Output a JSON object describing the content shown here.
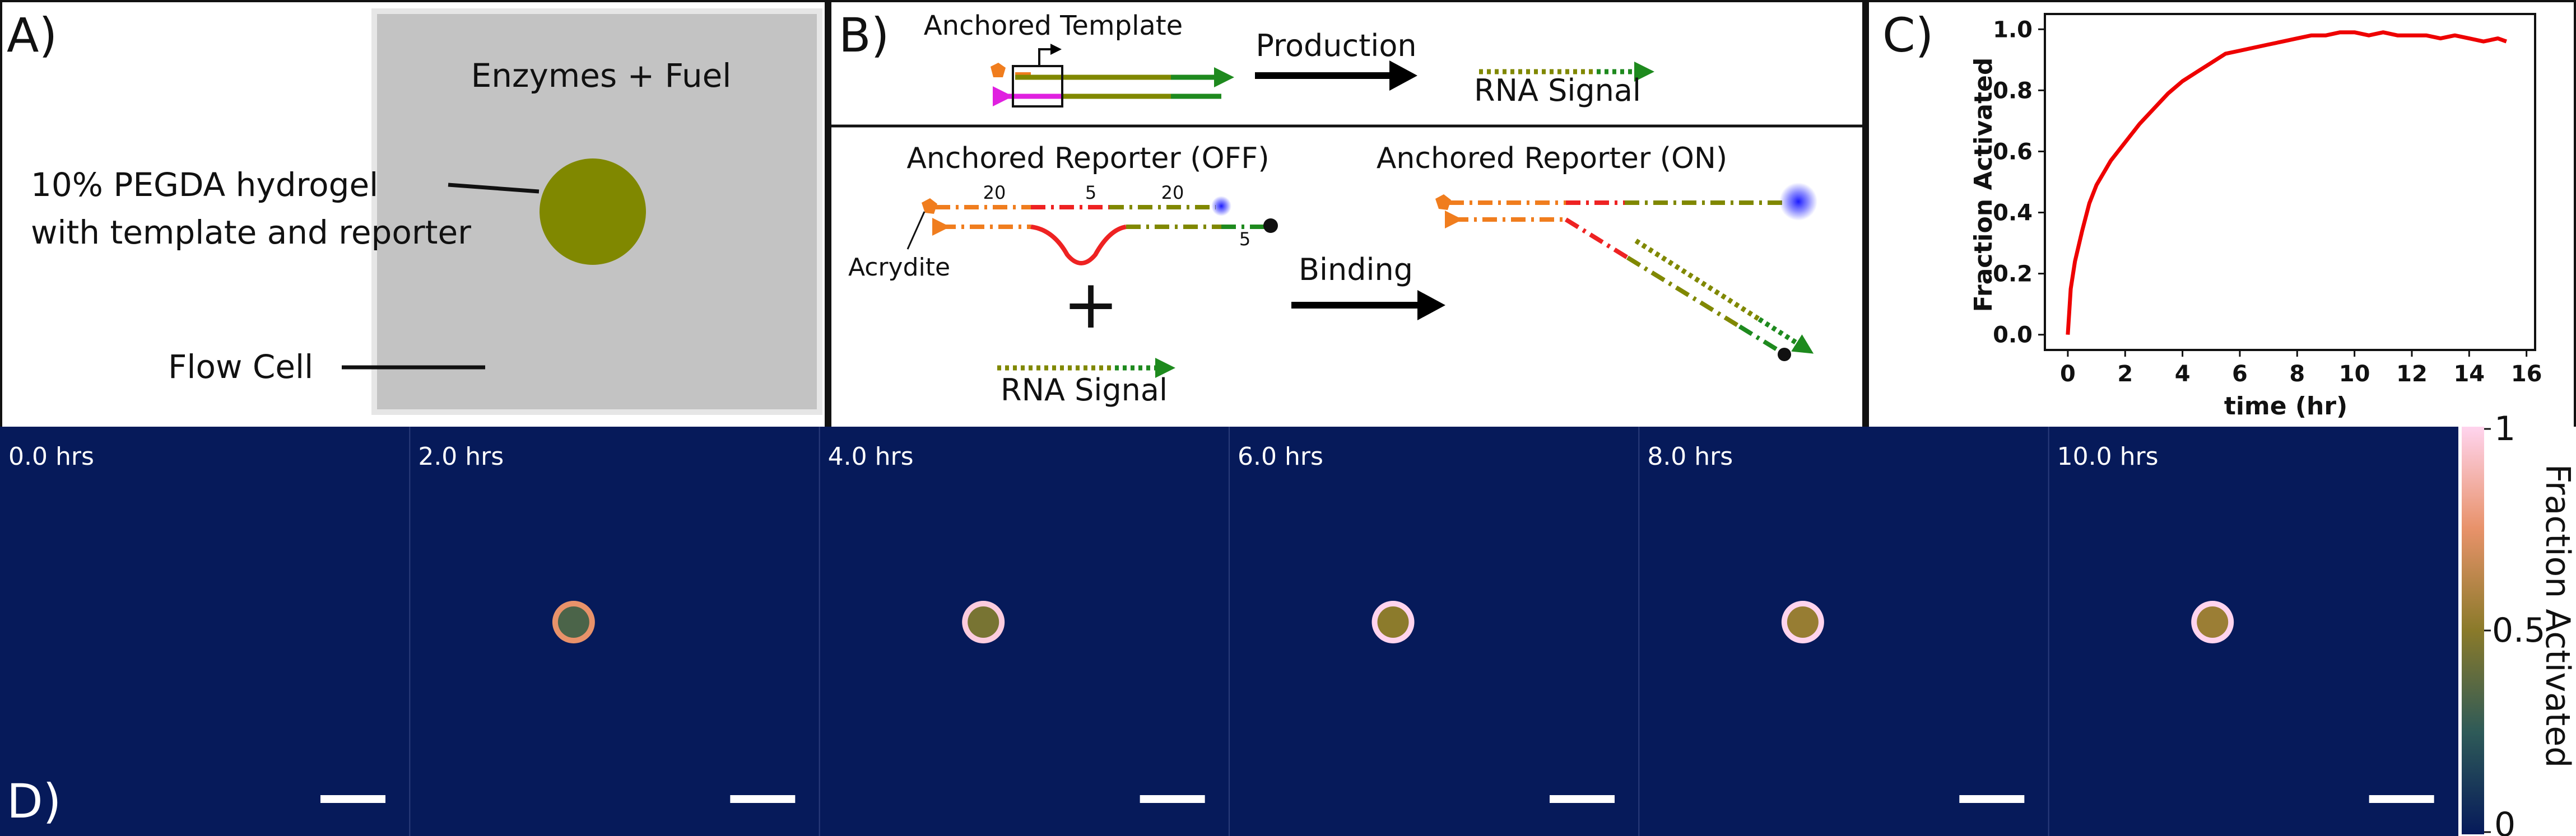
{
  "panels": {
    "a": {
      "letter": "A)",
      "enzymes_label": "Enzymes + Fuel",
      "hydrogel_label_line1": "10% PEGDA hydrogel",
      "hydrogel_label_line2": "with template and reporter",
      "flowcell_label": "Flow Cell",
      "bead_color": "#808800",
      "flowcell_color": "#c3c3c3"
    },
    "b": {
      "letter": "B)",
      "template_title": "Anchored Template",
      "production_label": "Production",
      "rna_signal_top": "RNA Signal",
      "reporter_off_title": "Anchored Reporter (OFF)",
      "reporter_on_title": "Anchored Reporter (ON)",
      "acrydite_label": "Acrydite",
      "binding_label": "Binding",
      "rna_signal_bottom": "RNA Signal",
      "plus": "+",
      "domain_lengths": [
        "20",
        "5",
        "20",
        "5"
      ]
    },
    "c": {
      "letter": "C)",
      "xlabel": "time (hr)",
      "ylabel": "Fraction Activated",
      "line_color": "#ee0000"
    },
    "d": {
      "letter": "D)",
      "background_color": "#061a5a",
      "frames": [
        {
          "time_label": "0.0 hrs",
          "activation": 0.0
        },
        {
          "time_label": "2.0 hrs",
          "activation": 0.6
        },
        {
          "time_label": "4.0 hrs",
          "activation": 0.82
        },
        {
          "time_label": "6.0 hrs",
          "activation": 0.92
        },
        {
          "time_label": "8.0 hrs",
          "activation": 0.97
        },
        {
          "time_label": "10.0 hrs",
          "activation": 0.99
        }
      ],
      "colorbar": {
        "label": "Fraction Activated",
        "tick_max": "1",
        "tick_mid": "0.5",
        "tick_min": "0"
      }
    }
  },
  "chart_data": {
    "type": "line",
    "title": "",
    "xlabel": "time (hr)",
    "ylabel": "Fraction Activated",
    "xlim": [
      -0.8,
      16.3
    ],
    "ylim": [
      -0.05,
      1.05
    ],
    "xticks": [
      "0",
      "2",
      "4",
      "6",
      "8",
      "10",
      "12",
      "14",
      "16"
    ],
    "yticks": [
      "0.0",
      "0.2",
      "0.4",
      "0.6",
      "0.8",
      "1.0"
    ],
    "series": [
      {
        "color": "#ee0000",
        "x": [
          0,
          0.1,
          0.25,
          0.5,
          0.75,
          1.0,
          1.25,
          1.5,
          1.75,
          2.0,
          2.5,
          3.0,
          3.5,
          4.0,
          4.5,
          5.0,
          5.5,
          6.0,
          6.5,
          7.0,
          7.5,
          8.0,
          8.5,
          9.0,
          9.5,
          10.0,
          10.5,
          11.0,
          11.5,
          12.0,
          12.5,
          13.0,
          13.5,
          14.0,
          14.5,
          15.0,
          15.3
        ],
        "y": [
          0.0,
          0.15,
          0.24,
          0.34,
          0.43,
          0.49,
          0.53,
          0.57,
          0.6,
          0.63,
          0.69,
          0.74,
          0.79,
          0.83,
          0.86,
          0.89,
          0.92,
          0.93,
          0.94,
          0.95,
          0.96,
          0.97,
          0.98,
          0.98,
          0.99,
          0.99,
          0.98,
          0.99,
          0.98,
          0.98,
          0.98,
          0.97,
          0.98,
          0.97,
          0.96,
          0.97,
          0.96
        ]
      }
    ]
  }
}
